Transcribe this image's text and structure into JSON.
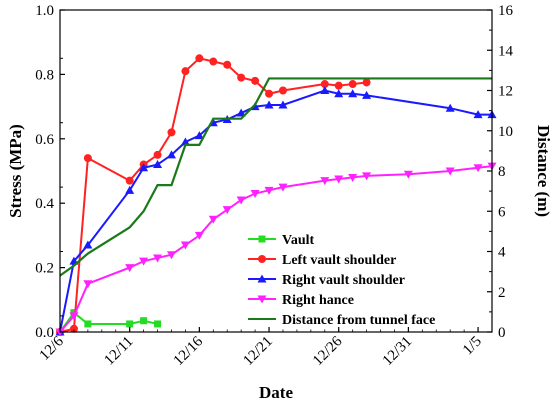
{
  "chart_data": {
    "type": "line",
    "xlabel": "Date",
    "ylabel_left": "Stress (MPa)",
    "ylabel_right": "Distance (m)",
    "x_range": [
      "2019-12-06",
      "2020-01-06"
    ],
    "ylim_left": [
      0,
      1.0
    ],
    "ylim_right": [
      0,
      16
    ],
    "x_ticks": [
      {
        "date": "2019-12-06",
        "label": "12/6"
      },
      {
        "date": "2019-12-11",
        "label": "12/11"
      },
      {
        "date": "2019-12-16",
        "label": "12/16"
      },
      {
        "date": "2019-12-21",
        "label": "12/21"
      },
      {
        "date": "2019-12-26",
        "label": "12/26"
      },
      {
        "date": "2019-12-31",
        "label": "12/31"
      },
      {
        "date": "2020-01-05",
        "label": "1/5"
      }
    ],
    "y_ticks_left": [
      "0.0",
      "0.2",
      "0.4",
      "0.6",
      "0.8",
      "1.0"
    ],
    "y_ticks_right": [
      "0",
      "2",
      "4",
      "6",
      "8",
      "10",
      "12",
      "14",
      "16"
    ],
    "grid": false,
    "legend_position": "bottom-right",
    "series": [
      {
        "name": "Vault",
        "axis": "left",
        "color": "#22dd22",
        "marker": "square",
        "points": [
          {
            "x": "2019-12-06",
            "y": 0.0
          },
          {
            "x": "2019-12-07",
            "y": 0.06
          },
          {
            "x": "2019-12-08",
            "y": 0.025
          },
          {
            "x": "2019-12-11",
            "y": 0.025
          },
          {
            "x": "2019-12-12",
            "y": 0.035
          },
          {
            "x": "2019-12-13",
            "y": 0.025
          }
        ]
      },
      {
        "name": "Left vault shoulder",
        "axis": "left",
        "color": "#ff2222",
        "marker": "circle",
        "points": [
          {
            "x": "2019-12-06",
            "y": 0.0
          },
          {
            "x": "2019-12-07",
            "y": 0.01
          },
          {
            "x": "2019-12-08",
            "y": 0.54
          },
          {
            "x": "2019-12-11",
            "y": 0.47
          },
          {
            "x": "2019-12-12",
            "y": 0.52
          },
          {
            "x": "2019-12-13",
            "y": 0.55
          },
          {
            "x": "2019-12-14",
            "y": 0.62
          },
          {
            "x": "2019-12-15",
            "y": 0.81
          },
          {
            "x": "2019-12-16",
            "y": 0.85
          },
          {
            "x": "2019-12-17",
            "y": 0.84
          },
          {
            "x": "2019-12-18",
            "y": 0.83
          },
          {
            "x": "2019-12-19",
            "y": 0.79
          },
          {
            "x": "2019-12-20",
            "y": 0.78
          },
          {
            "x": "2019-12-21",
            "y": 0.74
          },
          {
            "x": "2019-12-22",
            "y": 0.75
          },
          {
            "x": "2019-12-25",
            "y": 0.77
          },
          {
            "x": "2019-12-26",
            "y": 0.765
          },
          {
            "x": "2019-12-27",
            "y": 0.77
          },
          {
            "x": "2019-12-28",
            "y": 0.775
          }
        ]
      },
      {
        "name": "Right vault shoulder",
        "axis": "left",
        "color": "#1a1aff",
        "marker": "triangle-up",
        "points": [
          {
            "x": "2019-12-06",
            "y": 0.0
          },
          {
            "x": "2019-12-07",
            "y": 0.22
          },
          {
            "x": "2019-12-08",
            "y": 0.27
          },
          {
            "x": "2019-12-11",
            "y": 0.44
          },
          {
            "x": "2019-12-12",
            "y": 0.51
          },
          {
            "x": "2019-12-13",
            "y": 0.52
          },
          {
            "x": "2019-12-14",
            "y": 0.55
          },
          {
            "x": "2019-12-15",
            "y": 0.59
          },
          {
            "x": "2019-12-16",
            "y": 0.61
          },
          {
            "x": "2019-12-17",
            "y": 0.65
          },
          {
            "x": "2019-12-18",
            "y": 0.66
          },
          {
            "x": "2019-12-19",
            "y": 0.68
          },
          {
            "x": "2019-12-20",
            "y": 0.7
          },
          {
            "x": "2019-12-21",
            "y": 0.705
          },
          {
            "x": "2019-12-22",
            "y": 0.705
          },
          {
            "x": "2019-12-25",
            "y": 0.75
          },
          {
            "x": "2019-12-26",
            "y": 0.74
          },
          {
            "x": "2019-12-27",
            "y": 0.74
          },
          {
            "x": "2019-12-28",
            "y": 0.735
          },
          {
            "x": "2020-01-03",
            "y": 0.695
          },
          {
            "x": "2020-01-05",
            "y": 0.675
          },
          {
            "x": "2020-01-06",
            "y": 0.675
          }
        ]
      },
      {
        "name": "Right hance",
        "axis": "left",
        "color": "#ff22ff",
        "marker": "triangle-down",
        "points": [
          {
            "x": "2019-12-06",
            "y": 0.0
          },
          {
            "x": "2019-12-07",
            "y": 0.05
          },
          {
            "x": "2019-12-08",
            "y": 0.15
          },
          {
            "x": "2019-12-11",
            "y": 0.2
          },
          {
            "x": "2019-12-12",
            "y": 0.22
          },
          {
            "x": "2019-12-13",
            "y": 0.23
          },
          {
            "x": "2019-12-14",
            "y": 0.24
          },
          {
            "x": "2019-12-15",
            "y": 0.27
          },
          {
            "x": "2019-12-16",
            "y": 0.3
          },
          {
            "x": "2019-12-17",
            "y": 0.35
          },
          {
            "x": "2019-12-18",
            "y": 0.38
          },
          {
            "x": "2019-12-19",
            "y": 0.41
          },
          {
            "x": "2019-12-20",
            "y": 0.43
          },
          {
            "x": "2019-12-21",
            "y": 0.44
          },
          {
            "x": "2019-12-22",
            "y": 0.45
          },
          {
            "x": "2019-12-25",
            "y": 0.47
          },
          {
            "x": "2019-12-26",
            "y": 0.475
          },
          {
            "x": "2019-12-27",
            "y": 0.48
          },
          {
            "x": "2019-12-28",
            "y": 0.485
          },
          {
            "x": "2019-12-31",
            "y": 0.49
          },
          {
            "x": "2020-01-03",
            "y": 0.5
          },
          {
            "x": "2020-01-05",
            "y": 0.51
          },
          {
            "x": "2020-01-06",
            "y": 0.515
          }
        ]
      },
      {
        "name": "Distance from tunnel face",
        "axis": "right",
        "color": "#1a7a1a",
        "marker": "none",
        "points": [
          {
            "x": "2019-12-06",
            "y": 2.8
          },
          {
            "x": "2019-12-07",
            "y": 3.3
          },
          {
            "x": "2019-12-08",
            "y": 3.9
          },
          {
            "x": "2019-12-11",
            "y": 5.2
          },
          {
            "x": "2019-12-12",
            "y": 6.0
          },
          {
            "x": "2019-12-13",
            "y": 7.3
          },
          {
            "x": "2019-12-14",
            "y": 7.3
          },
          {
            "x": "2019-12-15",
            "y": 9.3
          },
          {
            "x": "2019-12-16",
            "y": 9.3
          },
          {
            "x": "2019-12-17",
            "y": 10.6
          },
          {
            "x": "2019-12-19",
            "y": 10.6
          },
          {
            "x": "2019-12-20",
            "y": 11.3
          },
          {
            "x": "2019-12-21",
            "y": 12.6
          },
          {
            "x": "2020-01-06",
            "y": 12.6
          }
        ]
      }
    ]
  }
}
